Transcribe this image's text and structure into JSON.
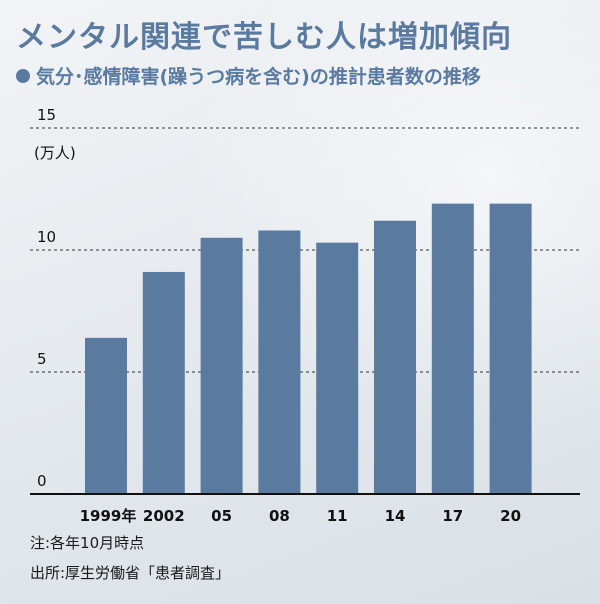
{
  "title": "メンタル関連で苦しむ人は増加傾向",
  "subtitle": "気分･感情障害(躁うつ病を含む)の推計患者数の推移",
  "notes": {
    "note1": "注:各年10月時点",
    "source": "出所:厚生労働省「患者調査」"
  },
  "colors": {
    "title": "#5a7aa0",
    "bar": "#5b7aa0",
    "axis": "#111111"
  },
  "chart_data": {
    "type": "bar",
    "title": "気分･感情障害(躁うつ病を含む)の推計患者数の推移",
    "ylabel": "(万人)",
    "categories": [
      "1999年",
      "2002",
      "05",
      "08",
      "11",
      "14",
      "17",
      "20"
    ],
    "values": [
      6.4,
      9.1,
      10.5,
      10.8,
      10.3,
      11.2,
      11.9,
      11.9
    ],
    "yticks": [
      0,
      5,
      10,
      15
    ],
    "ylim": [
      0,
      15
    ],
    "grid": "dashed horizontal",
    "legend": "none"
  }
}
